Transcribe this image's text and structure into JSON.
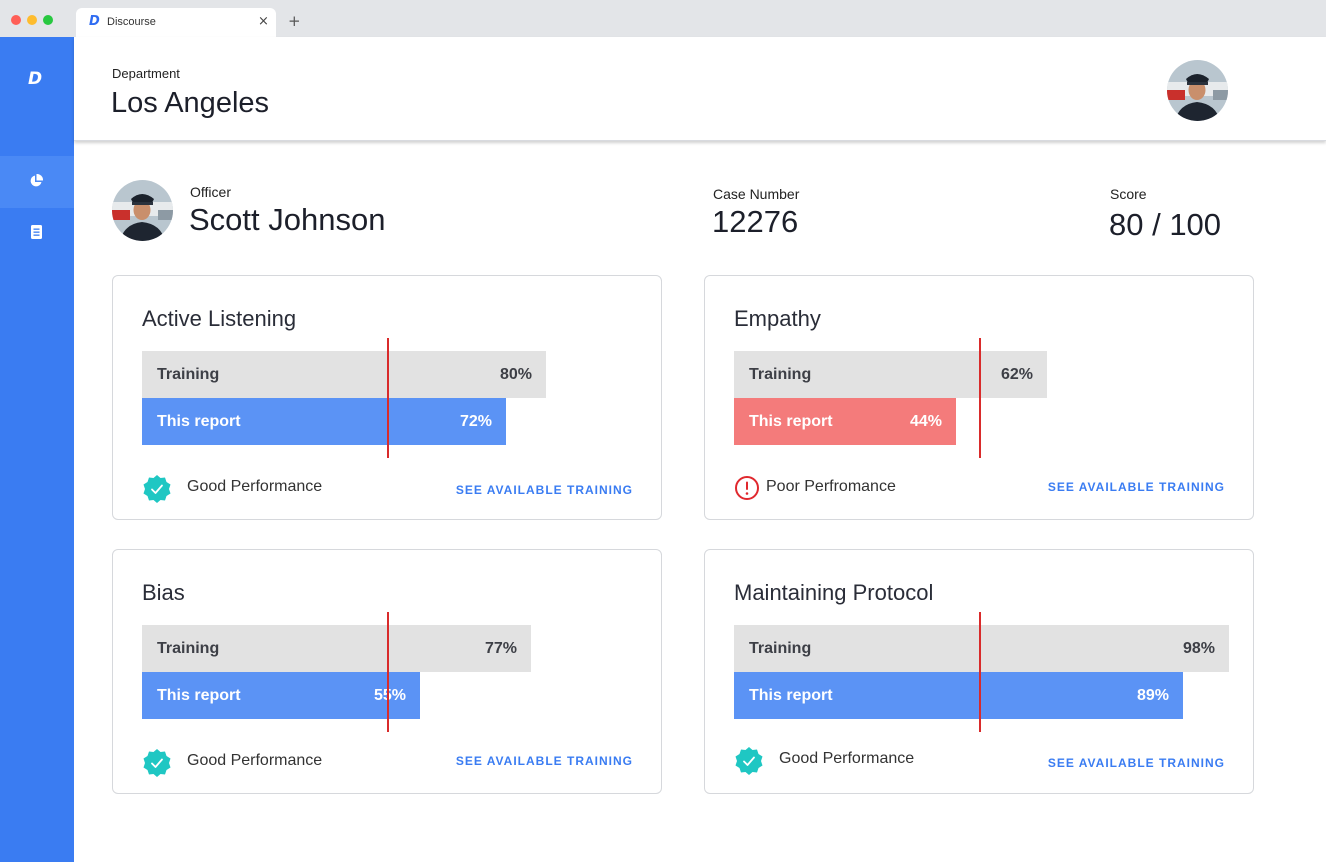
{
  "browser": {
    "tab_title": "Discourse",
    "tab_logo": "D",
    "tab_close": "×",
    "new_tab": "+"
  },
  "sidebar": {
    "logo": "D",
    "items": [
      {
        "icon": "pie-chart-icon",
        "active": true
      },
      {
        "icon": "document-icon",
        "active": false
      }
    ],
    "accent_color": "#3a7cf2"
  },
  "header": {
    "department_label": "Department",
    "department_name": "Los Angeles"
  },
  "officer": {
    "label": "Officer",
    "name": "Scott Johnson",
    "case_label": "Case Number",
    "case_number": "12276",
    "score_label": "Score",
    "score": "80 / 100"
  },
  "cards": [
    {
      "title": "Active Listening",
      "training_label": "Training",
      "training_value": "80%",
      "training_pct": 80,
      "report_label": "This report",
      "report_value": "72%",
      "report_pct": 72,
      "report_color": "#5b93f5",
      "status": "Good Performance",
      "status_type": "good",
      "link": "SEE AVAILABLE TRAINING"
    },
    {
      "title": "Empathy",
      "training_label": "Training",
      "training_value": "62%",
      "training_pct": 62,
      "report_label": "This report",
      "report_value": "44%",
      "report_pct": 44,
      "report_color": "#f47b7b",
      "status": "Poor Perfromance",
      "status_type": "poor",
      "link": "SEE AVAILABLE TRAINING"
    },
    {
      "title": "Bias",
      "training_label": "Training",
      "training_value": "77%",
      "training_pct": 77,
      "report_label": "This report",
      "report_value": "55%",
      "report_pct": 55,
      "report_color": "#5b93f5",
      "status": "Good Performance",
      "status_type": "good",
      "link": "SEE AVAILABLE TRAINING"
    },
    {
      "title": "Maintaining Protocol",
      "training_label": "Training",
      "training_value": "98%",
      "training_pct": 98,
      "report_label": "This report",
      "report_value": "89%",
      "report_pct": 89,
      "report_color": "#5b93f5",
      "status": "Good Performance",
      "status_type": "good",
      "link": "SEE AVAILABLE TRAINING"
    }
  ],
  "colors": {
    "good": "#1fc7c3",
    "poor": "#e0282e",
    "reference_line": "#d92b2b"
  }
}
